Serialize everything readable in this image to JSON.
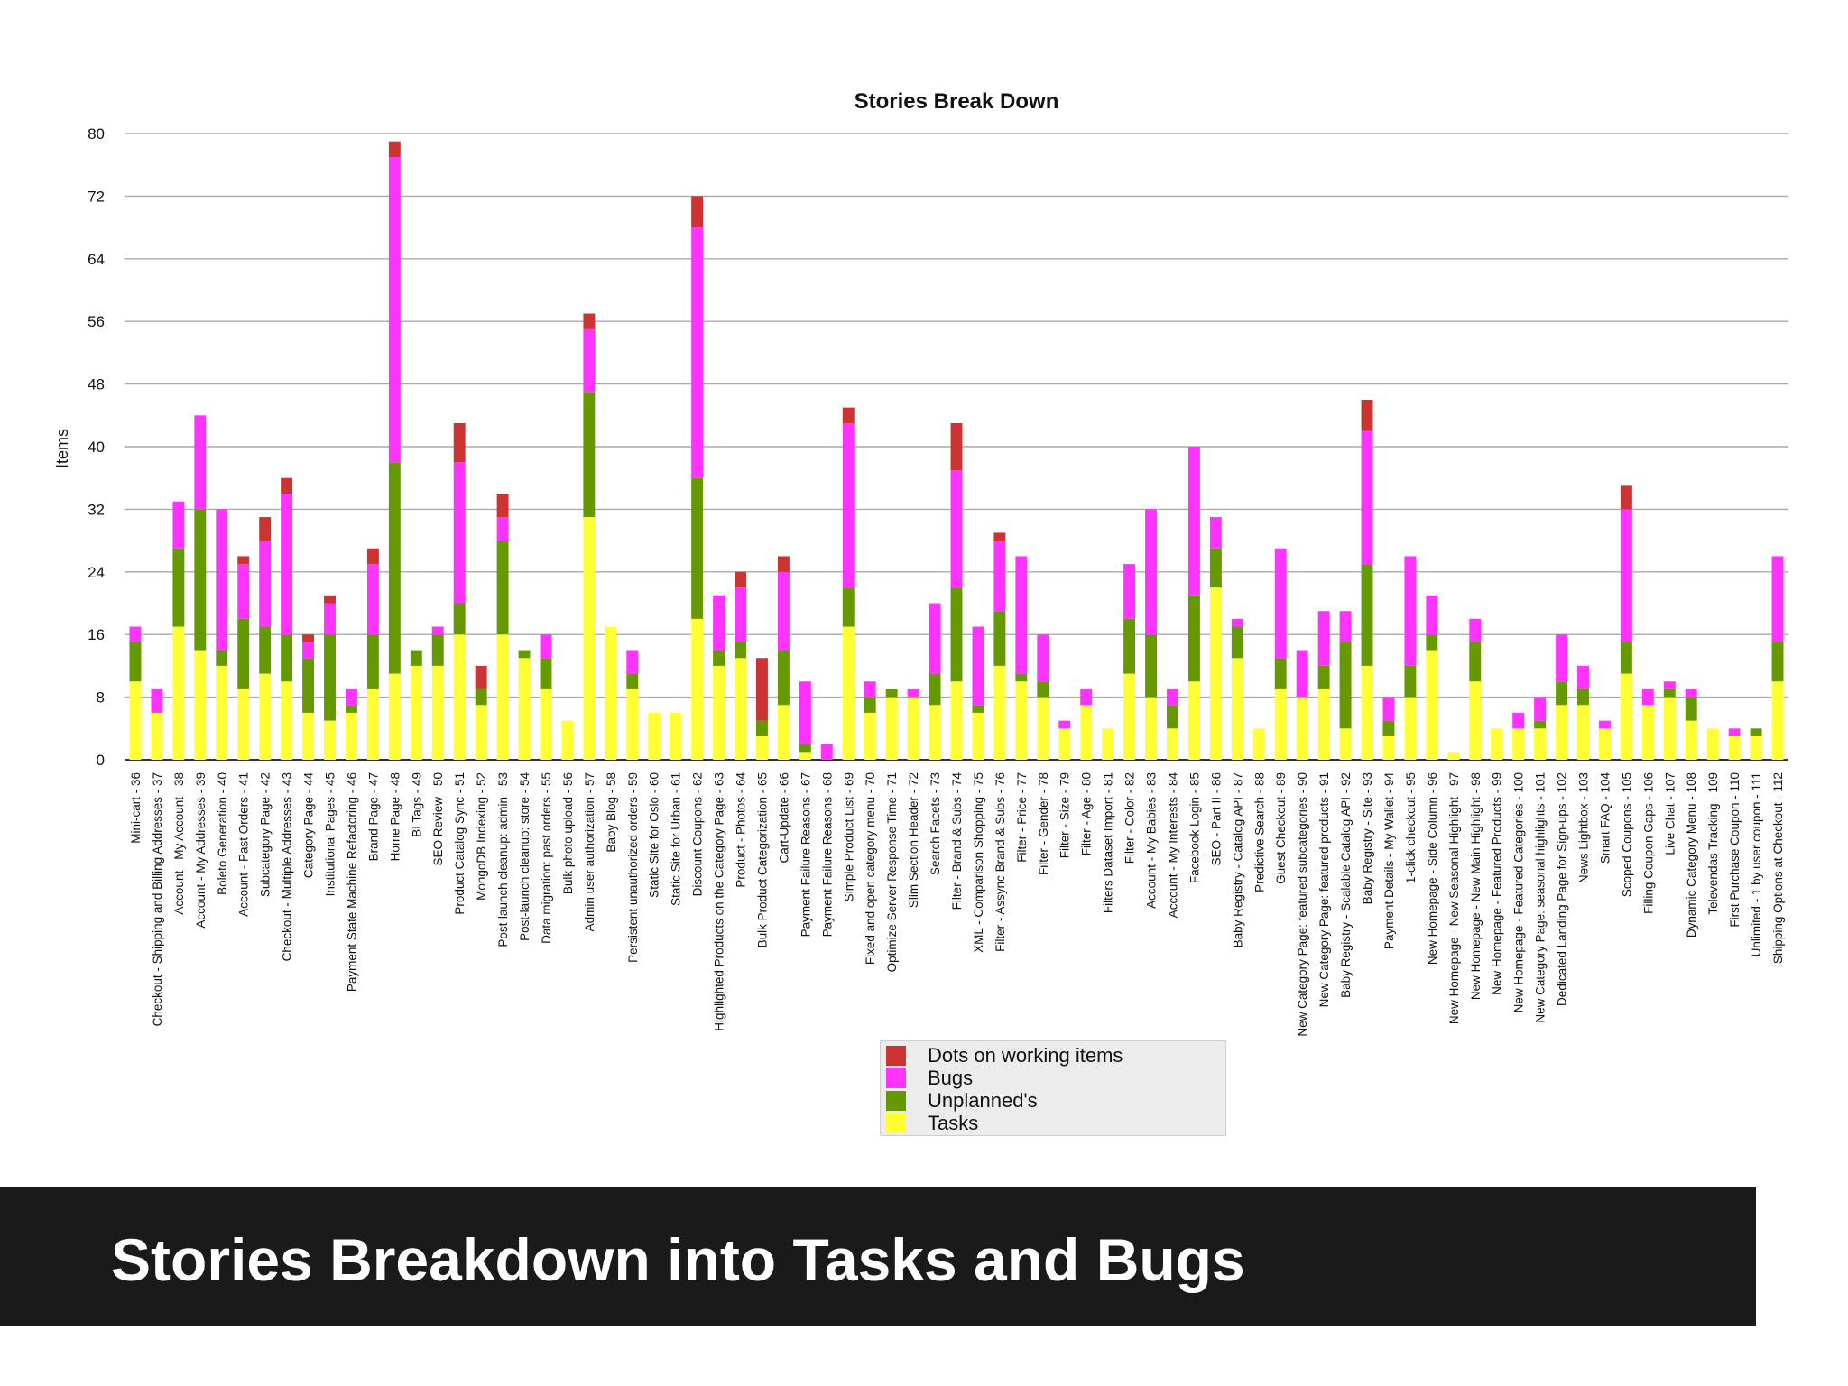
{
  "slide": {
    "caption": "Stories Breakdown into Tasks and Bugs"
  },
  "chart_data": {
    "type": "bar",
    "stacked": true,
    "title": "Stories Break Down",
    "xlabel": "",
    "ylabel": "Items",
    "ylim": [
      0,
      80
    ],
    "yticks": [
      0,
      8,
      16,
      24,
      32,
      40,
      48,
      56,
      64,
      72,
      80
    ],
    "grid": true,
    "legend_position": "bottom-center",
    "categories": [
      "Mini-cart - 36",
      "Checkout - Shipping and Billing Addresses - 37",
      "Account - My Account - 38",
      "Account - My Addresses - 39",
      "Boleto Generation - 40",
      "Account - Past Orders - 41",
      "Subcategory Page - 42",
      "Checkout - Multiple Addresses - 43",
      "Category Page - 44",
      "Institutional Pages - 45",
      "Payment State Machine Refactoring - 46",
      "Brand Page - 47",
      "Home Page - 48",
      "BI Tags - 49",
      "SEO Review - 50",
      "Product Catalog Sync - 51",
      "MongoDB Indexing - 52",
      "Post-launch cleanup: admin - 53",
      "Post-launch cleanup: store - 54",
      "Data migration: past orders - 55",
      "Bulk photo upload - 56",
      "Admin user authorization - 57",
      "Baby Blog - 58",
      "Persistent unauthorized orders - 59",
      "Static Site for Oslo - 60",
      "Static Site for Urban - 61",
      "Discount Coupons - 62",
      "Highlighted Products on the Category Page - 63",
      "Product - Photos - 64",
      "Bulk Product Categorization - 65",
      "Cart-Update - 66",
      "Payment Failure Reasons - 67",
      "Payment Failure Reasons - 68",
      "Simple Product List - 69",
      "Fixed and open category menu - 70",
      "Optimize Server Response Time - 71",
      "Slim Section Header - 72",
      "Search Facets - 73",
      "Filter - Brand & Subs - 74",
      "XML - Comparison Shopping - 75",
      "Filter - Assync Brand & Subs - 76",
      "Filter - Price - 77",
      "Filter - Gender - 78",
      "Filter - Size - 79",
      "Filter - Age - 80",
      "Filters Dataset Import - 81",
      "Filter - Color - 82",
      "Account - My Babies - 83",
      "Account - My Interests - 84",
      "Facebook Login - 85",
      "SEO - Part II - 86",
      "Baby Registry - Catalog API - 87",
      "Predictive Search - 88",
      "Guest Checkout - 89",
      "New Category Page: featured subcategories - 90",
      "New Category Page: featured products - 91",
      "Baby Registry - Scalable Catalog API - 92",
      "Baby Registry - Site - 93",
      "Payment Details - My Wallet - 94",
      "1-click checkout - 95",
      "New Homepage - Side Column - 96",
      "New Homepage - New Seasonal Highlight - 97",
      "New Homepage - New Main Highlight - 98",
      "New Homepage - Featured Products - 99",
      "New Homepage - Featured Categories - 100",
      "New Category Page: seasonal highlights - 101",
      "Dedicated Landing Page for Sign-ups - 102",
      "News Lightbox - 103",
      "Smart FAQ - 104",
      "Scoped Coupons - 105",
      "Filling Coupon Gaps - 106",
      "Live Chat - 107",
      "Dynamic Category Menu - 108",
      "Televendas Tracking - 109",
      "First Purchase Coupon - 110",
      "Unlimited - 1 by user coupon - 111",
      "Shipping Options at Checkout - 112"
    ],
    "series": [
      {
        "name": "Tasks",
        "color": "#ffff33",
        "values": [
          10,
          6,
          17,
          14,
          12,
          9,
          11,
          10,
          6,
          5,
          6,
          9,
          11,
          12,
          12,
          16,
          7,
          16,
          13,
          9,
          5,
          31,
          17,
          9,
          6,
          6,
          18,
          12,
          13,
          3,
          7,
          1,
          0,
          17,
          6,
          8,
          8,
          7,
          10,
          6,
          12,
          10,
          8,
          4,
          7,
          4,
          11,
          8,
          4,
          10,
          22,
          13,
          4,
          9,
          8,
          9,
          4,
          12,
          3,
          8,
          14,
          1,
          10,
          4,
          4,
          4,
          7,
          7,
          4,
          11,
          7,
          8,
          5,
          4,
          3,
          3,
          10
        ]
      },
      {
        "name": "Unplanned's",
        "color": "#669900",
        "values": [
          5,
          0,
          10,
          18,
          2,
          9,
          6,
          6,
          7,
          11,
          1,
          7,
          27,
          2,
          4,
          4,
          2,
          12,
          1,
          4,
          0,
          16,
          0,
          2,
          0,
          0,
          18,
          2,
          2,
          2,
          7,
          1,
          0,
          5,
          2,
          1,
          0,
          4,
          12,
          1,
          7,
          1,
          2,
          0,
          0,
          0,
          7,
          8,
          3,
          11,
          5,
          4,
          0,
          4,
          0,
          3,
          11,
          13,
          2,
          4,
          2,
          0,
          5,
          0,
          0,
          1,
          3,
          2,
          0,
          4,
          0,
          1,
          3,
          0,
          0,
          1,
          5
        ]
      },
      {
        "name": "Bugs",
        "color": "#ff33ff",
        "values": [
          2,
          3,
          6,
          12,
          18,
          7,
          11,
          18,
          2,
          4,
          2,
          9,
          39,
          0,
          1,
          18,
          0,
          3,
          0,
          3,
          0,
          8,
          0,
          3,
          0,
          0,
          32,
          7,
          7,
          0,
          10,
          8,
          2,
          21,
          2,
          0,
          1,
          9,
          15,
          10,
          9,
          15,
          6,
          1,
          2,
          0,
          7,
          16,
          2,
          19,
          4,
          1,
          0,
          14,
          6,
          7,
          4,
          17,
          3,
          14,
          5,
          0,
          3,
          0,
          2,
          3,
          6,
          3,
          1,
          17,
          2,
          1,
          1,
          0,
          1,
          0,
          11
        ]
      },
      {
        "name": "Dots on working items",
        "color": "#cc3333",
        "values": [
          0,
          0,
          0,
          0,
          0,
          1,
          3,
          2,
          1,
          1,
          0,
          2,
          2,
          0,
          0,
          5,
          3,
          3,
          0,
          0,
          0,
          2,
          0,
          0,
          0,
          0,
          4,
          0,
          2,
          8,
          2,
          0,
          0,
          2,
          0,
          0,
          0,
          0,
          6,
          0,
          1,
          0,
          0,
          0,
          0,
          0,
          0,
          0,
          0,
          0,
          0,
          0,
          0,
          0,
          0,
          0,
          0,
          4,
          0,
          0,
          0,
          0,
          0,
          0,
          0,
          0,
          0,
          0,
          0,
          3,
          0,
          0,
          0,
          0,
          0,
          0,
          0
        ]
      }
    ],
    "legend_order": [
      "Dots on working items",
      "Bugs",
      "Unplanned's",
      "Tasks"
    ]
  }
}
